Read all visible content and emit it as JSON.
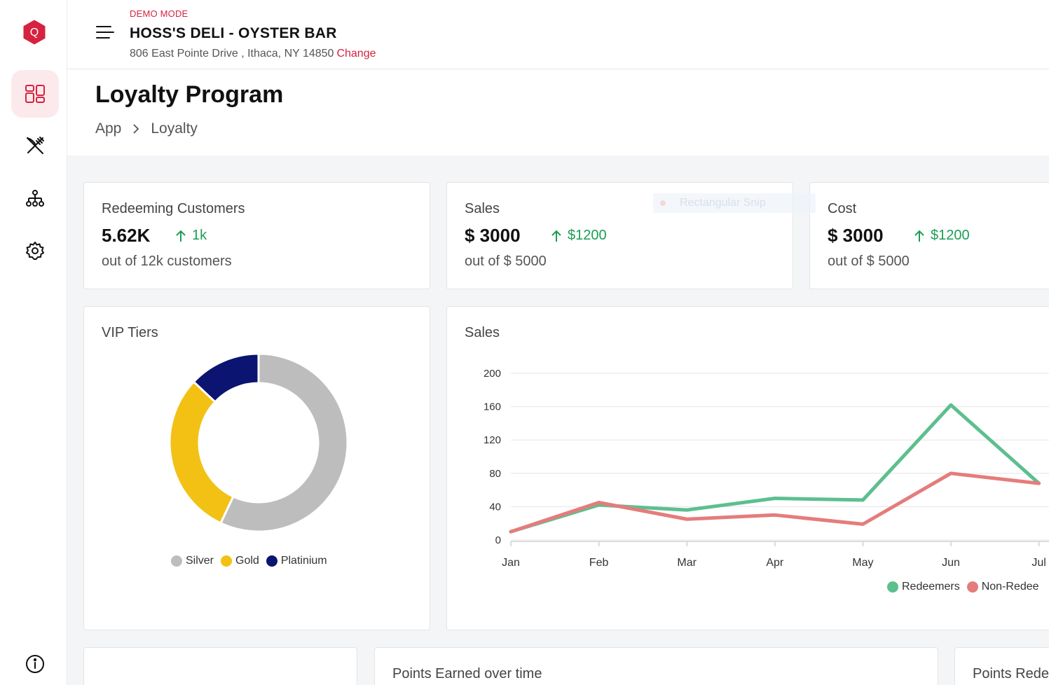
{
  "header": {
    "demo_label": "DEMO MODE",
    "store_name": "HOSS'S DELI - OYSTER BAR",
    "address": "806 East Pointe Drive , Ithaca, NY 14850",
    "change_label": "Change"
  },
  "sidebar": {
    "logo_letter": "Q",
    "items": [
      {
        "name": "dashboard-icon",
        "active": true
      },
      {
        "name": "utensils-icon",
        "active": false
      },
      {
        "name": "hierarchy-icon",
        "active": false
      },
      {
        "name": "gear-icon",
        "active": false
      },
      {
        "name": "info-icon",
        "active": false
      }
    ]
  },
  "page": {
    "title": "Loyalty Program",
    "breadcrumb": [
      "App",
      "Loyalty"
    ]
  },
  "stats": [
    {
      "title": "Redeeming Customers",
      "value": "5.62K",
      "delta": "1k",
      "sub": "out of 12k customers"
    },
    {
      "title": "Sales",
      "value": "$ 3000",
      "delta": "$1200",
      "sub": "out of $ 5000"
    },
    {
      "title": "Cost",
      "value": "$ 3000",
      "delta": "$1200",
      "sub": "out of $ 5000"
    }
  ],
  "overlay": {
    "snip_label": "Rectangular Snip"
  },
  "vip_card": {
    "title": "VIP Tiers"
  },
  "sales_card": {
    "title": "Sales"
  },
  "bottom_cards": [
    {
      "title": ""
    },
    {
      "title": "Points Earned over time"
    },
    {
      "title": "Points Rede"
    }
  ],
  "colors": {
    "brand": "#d6223f",
    "positive": "#1a9e55",
    "silver": "#bdbdbd",
    "gold": "#f2c114",
    "platinum": "#0b1470",
    "redeemers": "#5dbf8e",
    "non_redeemers": "#e57c7c"
  },
  "chart_data": [
    {
      "type": "pie",
      "title": "VIP Tiers",
      "categories": [
        "Silver",
        "Gold",
        "Platinium"
      ],
      "values": [
        57,
        30,
        13
      ],
      "colors": [
        "#bdbdbd",
        "#f2c114",
        "#0b1470"
      ],
      "donut": true,
      "legend": "bottom"
    },
    {
      "type": "line",
      "title": "Sales",
      "categories": [
        "Jan",
        "Feb",
        "Mar",
        "Apr",
        "May",
        "Jun",
        "Jul"
      ],
      "ylim": [
        0,
        200
      ],
      "yticks": [
        0,
        40,
        80,
        120,
        160,
        200
      ],
      "series": [
        {
          "name": "Redeemers",
          "values": [
            10,
            42,
            36,
            50,
            48,
            162,
            68
          ],
          "color": "#5dbf8e"
        },
        {
          "name": "Non-Redee",
          "values": [
            10,
            45,
            25,
            30,
            19,
            80,
            68
          ],
          "color": "#e57c7c"
        }
      ],
      "grid": true,
      "legend": "bottom-right"
    }
  ]
}
